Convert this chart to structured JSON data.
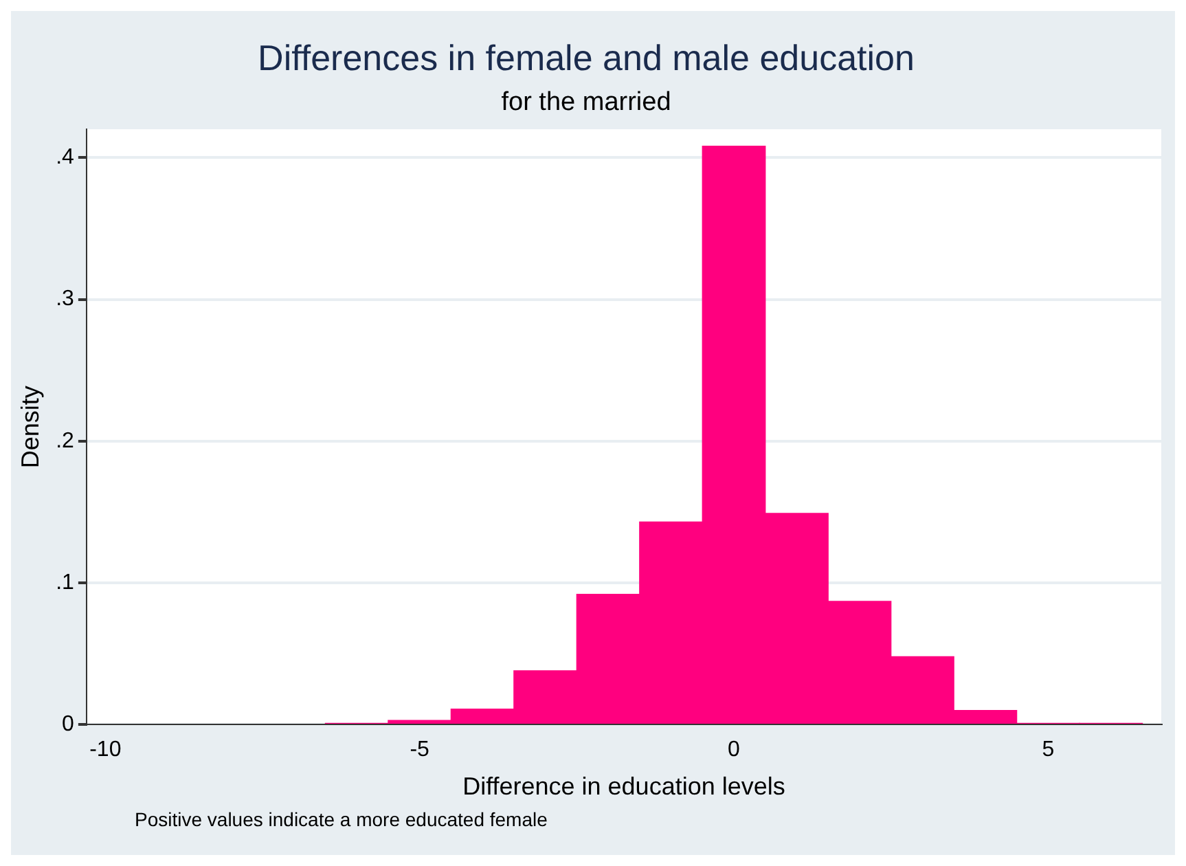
{
  "chart_data": {
    "type": "histogram",
    "title": "Differences in female and male education",
    "subtitle": "for the married",
    "xlabel": "Difference in education levels",
    "ylabel": "Density",
    "bins": [
      -6.5,
      -5.5,
      -4.5,
      -3.5,
      -2.5,
      -1.5,
      -0.5,
      0.5,
      1.5,
      2.5,
      3.5,
      4.5,
      5.5,
      6.5
    ],
    "values": [
      0.001,
      0.003,
      0.011,
      0.038,
      0.092,
      0.143,
      0.408,
      0.149,
      0.087,
      0.048,
      0.01,
      0.001,
      0.001
    ],
    "color": "#ff007f",
    "xlim": [
      -10.3,
      6.8
    ],
    "xticks": [
      -10,
      -5,
      0,
      5
    ],
    "ylim": [
      0,
      0.42
    ],
    "yticks": [
      0,
      {
        "value": 0.1,
        "label": ".1"
      },
      {
        "value": 0.2,
        "label": ".2"
      },
      {
        "value": 0.3,
        "label": ".3"
      },
      {
        "value": 0.4,
        "label": ".4"
      }
    ],
    "grid": "y",
    "annotations": [
      "Positive values indicate a more educated female"
    ]
  }
}
